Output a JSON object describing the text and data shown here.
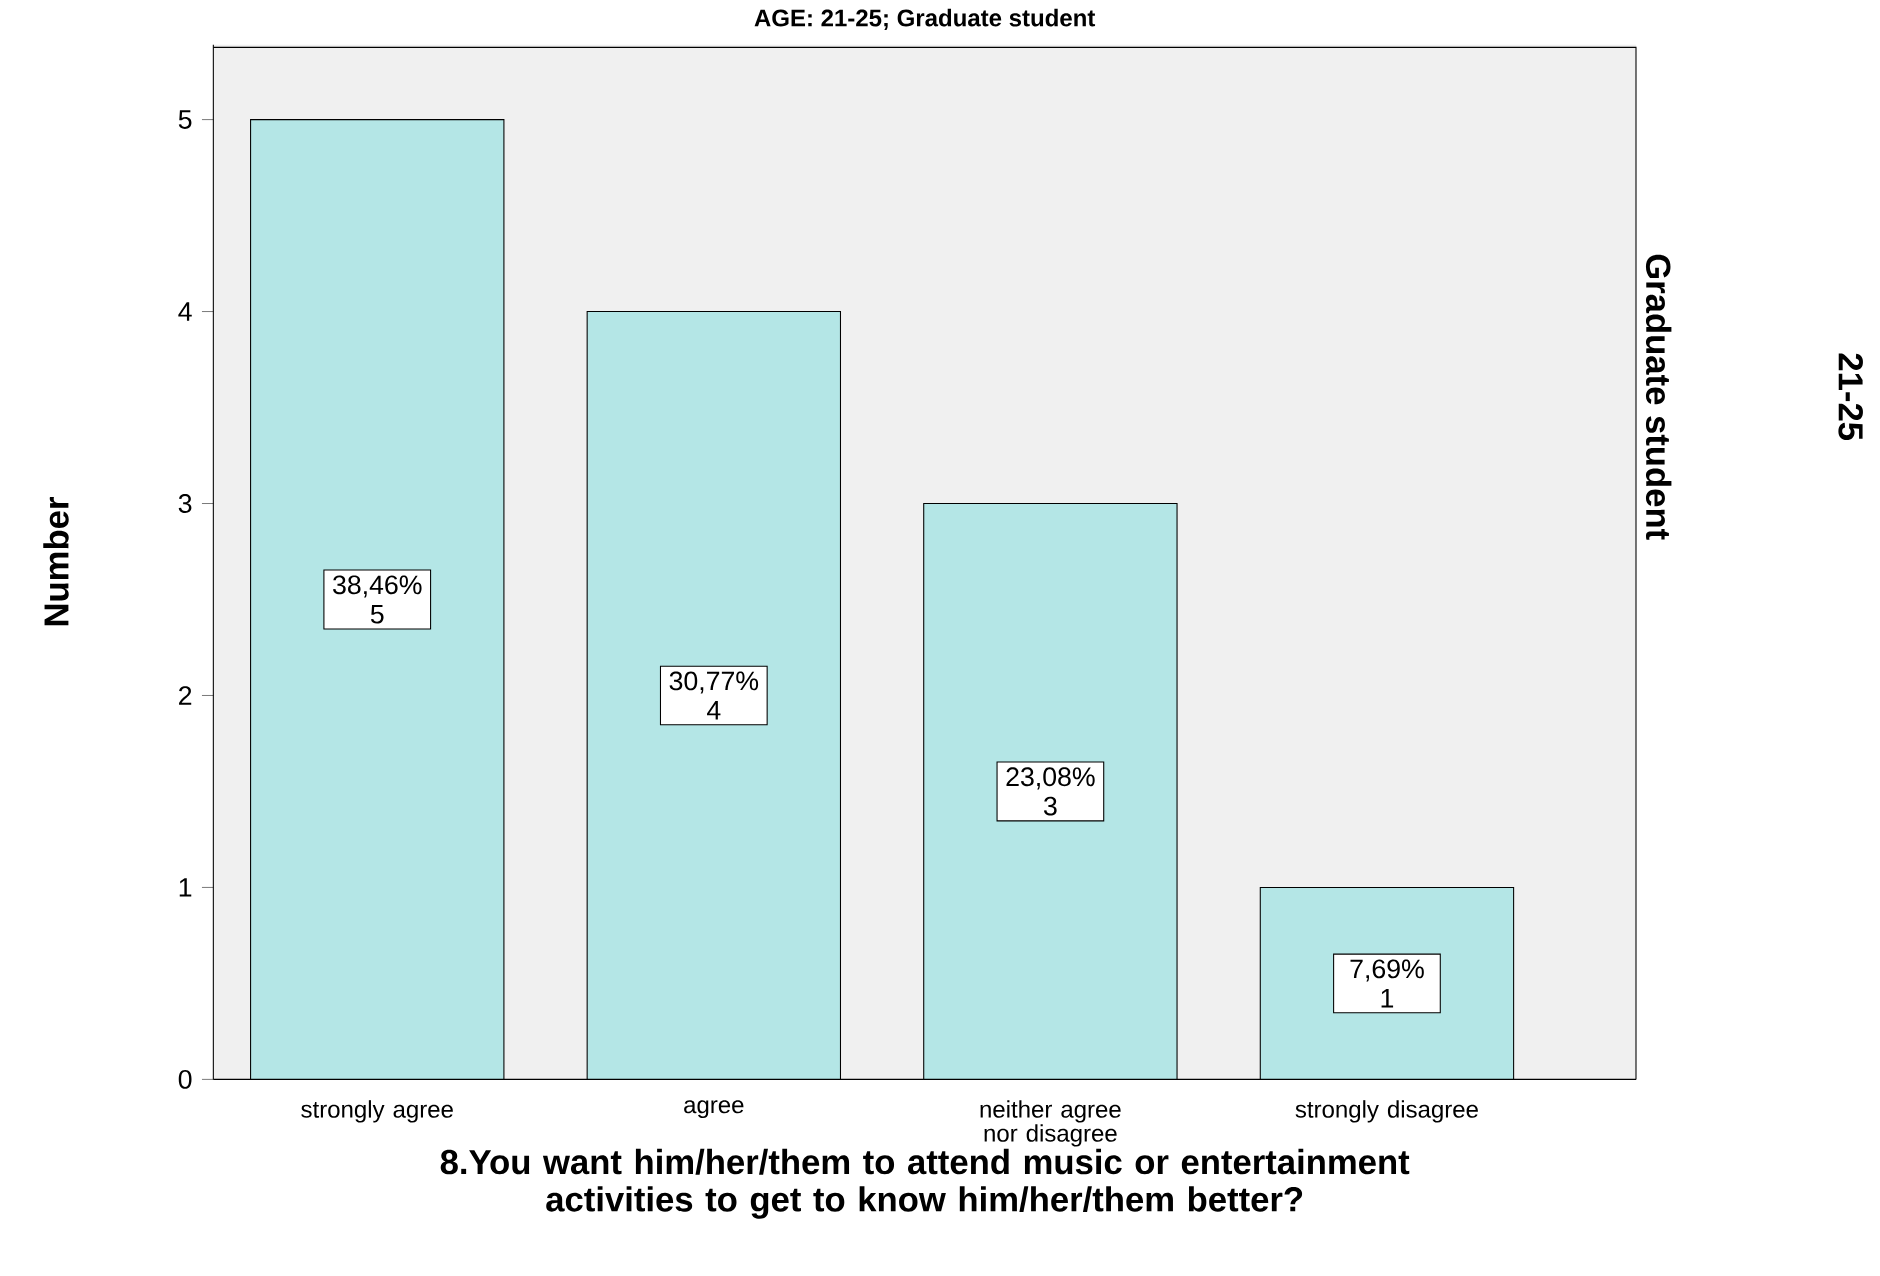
{
  "chart_data": {
    "type": "bar",
    "title": "AGE: 21-25; Graduate student",
    "ylabel": "Number",
    "xlabel": "8.You want him/her/them to attend music or entertainment activities to get to know him/her/them better?",
    "categories": [
      "strongly agree",
      "agree",
      "neither agree nor disagree",
      "strongly disagree"
    ],
    "values": [
      5,
      4,
      3,
      1
    ],
    "color": "#b4e6e6",
    "value_labels": [
      "38,46% 5",
      "30,77% 4",
      "23,08% 3",
      "7,69% 1"
    ],
    "ylim": [
      0,
      5.39
    ],
    "yticks": [
      0,
      1,
      2,
      3,
      4,
      5
    ],
    "annotations": [
      "Graduate student",
      "21-25"
    ]
  }
}
